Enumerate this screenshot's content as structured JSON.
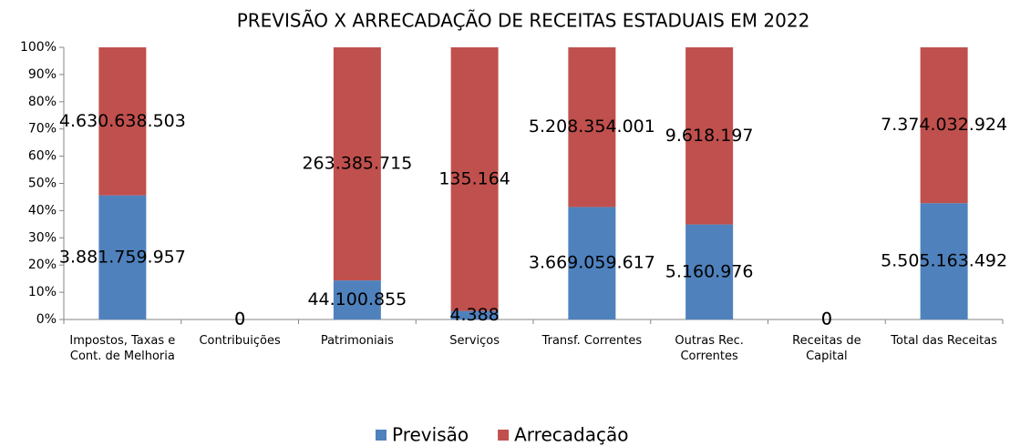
{
  "chart_data": {
    "type": "bar",
    "stacking": "percent",
    "title": "PREVISÃO X ARRECADAÇÃO DE RECEITAS ESTADUAIS EM 2022",
    "categories": [
      "Impostos, Taxas e Cont. de Melhoria",
      "Contribuições",
      "Patrimoniais",
      "Serviços",
      "Transf. Correntes",
      "Outras Rec. Correntes",
      "Receitas de Capital",
      "Total das Receitas"
    ],
    "series": [
      {
        "name": "Previsão",
        "color": "#4f81bd",
        "values": [
          3881759957,
          0,
          44100855,
          4388,
          3669059617,
          5160976,
          0,
          5505163492
        ],
        "value_labels": [
          "3.881.759.957",
          "0",
          "44.100.855",
          "4.388",
          "3.669.059.617",
          "5.160.976",
          "0",
          "5.505.163.492"
        ]
      },
      {
        "name": "Arrecadação",
        "color": "#c0504d",
        "values": [
          4630638503,
          0,
          263385715,
          135164,
          5208354001,
          9618197,
          0,
          7374032924
        ],
        "value_labels": [
          "4.630.638.503",
          "0",
          "263.385.715",
          "135.164",
          "5.208.354.001",
          "9.618.197",
          "0",
          "7.374.032.924"
        ]
      }
    ],
    "ylim": [
      0,
      100
    ],
    "yticks": [
      {
        "value": 0,
        "label": "0%"
      },
      {
        "value": 10,
        "label": "10%"
      },
      {
        "value": 20,
        "label": "20%"
      },
      {
        "value": 30,
        "label": "30%"
      },
      {
        "value": 40,
        "label": "40%"
      },
      {
        "value": 50,
        "label": "50%"
      },
      {
        "value": 60,
        "label": "60%"
      },
      {
        "value": 70,
        "label": "70%"
      },
      {
        "value": 80,
        "label": "80%"
      },
      {
        "value": 90,
        "label": "90%"
      },
      {
        "value": 100,
        "label": "100%"
      }
    ],
    "grid": false,
    "legend": "bottom"
  }
}
